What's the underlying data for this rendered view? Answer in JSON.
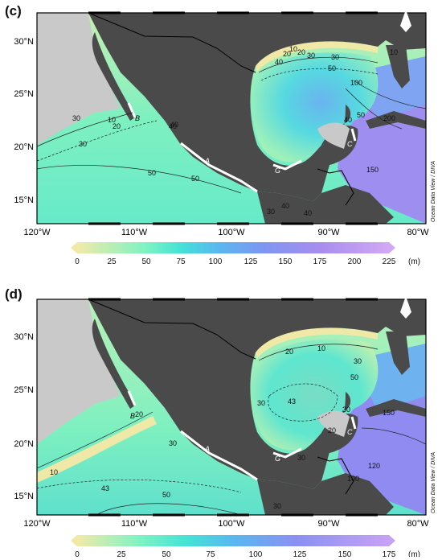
{
  "panels": [
    {
      "label": "(c)",
      "lat_labels": [
        "30°N",
        "25°N",
        "20°N",
        "15°N"
      ],
      "lon_labels": [
        "120°W",
        "110°W",
        "100°W",
        "90°W",
        "80°W"
      ],
      "colorbar": {
        "ticks": [
          "0",
          "25",
          "50",
          "75",
          "100",
          "125",
          "150",
          "175",
          "200",
          "225"
        ],
        "unit": "(m)",
        "min": 0,
        "max": 225
      },
      "site_labels": [
        "B",
        "A",
        "G",
        "C"
      ],
      "contour_labels": [
        "10",
        "20",
        "30",
        "40",
        "50",
        "10",
        "20",
        "30",
        "40",
        "50",
        "100",
        "200",
        "150",
        "40",
        "30",
        "40",
        "50",
        "10",
        "20",
        "30",
        "50",
        "40",
        "30",
        "40"
      ],
      "credit": "Ocean Data View / DIVA",
      "north": "N"
    },
    {
      "label": "(d)",
      "lat_labels": [
        "30°N",
        "25°N",
        "20°N",
        "15°N"
      ],
      "lon_labels": [
        "120°W",
        "110°W",
        "100°W",
        "90°W",
        "80°W"
      ],
      "colorbar": {
        "ticks": [
          "0",
          "25",
          "50",
          "75",
          "100",
          "125",
          "150",
          "175"
        ],
        "unit": "(m)",
        "min": 0,
        "max": 175
      },
      "site_labels": [
        "B",
        "A",
        "G",
        "C"
      ],
      "contour_labels": [
        "10",
        "20",
        "30",
        "50",
        "43",
        "30",
        "30",
        "20",
        "150",
        "120",
        "100",
        "20",
        "30",
        "10",
        "43",
        "50",
        "30",
        "30"
      ],
      "credit": "Ocean Data View / DIVA",
      "north": "N"
    }
  ],
  "colors": {
    "land": "#4a4a4a",
    "outside_land": "#c9c9c9",
    "scale": [
      "#efe8a6",
      "#a3f0b8",
      "#55e7d0",
      "#5fb8ee",
      "#8c8bf0",
      "#b08fec",
      "#c9a6f2"
    ]
  }
}
